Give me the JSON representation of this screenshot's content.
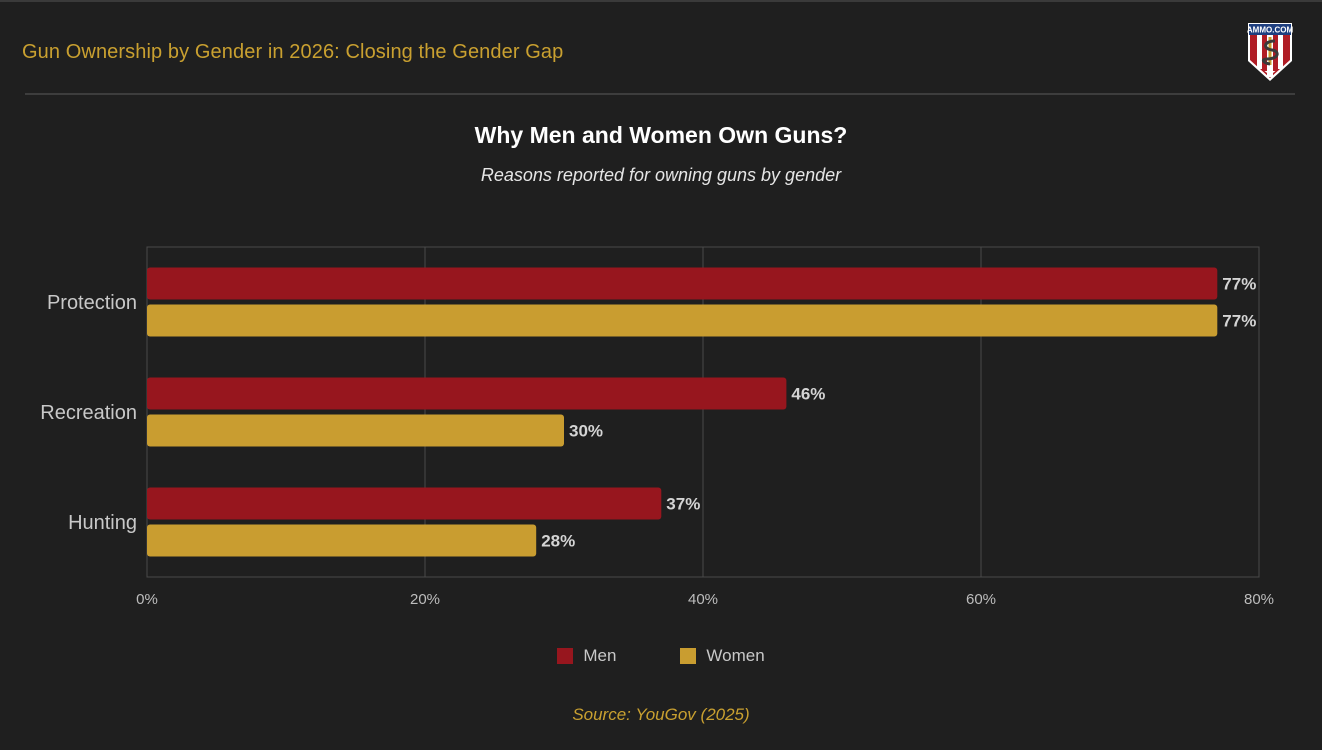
{
  "header": {
    "title": "Gun Ownership by Gender in 2026: Closing the Gender Gap",
    "logo_text": "AMMO.COM"
  },
  "colors": {
    "men": "#97161e",
    "women": "#c99d30",
    "accent": "#c9a030",
    "background": "#1f1f1f",
    "grid": "#4a4a4a"
  },
  "chart_data": {
    "type": "bar",
    "orientation": "horizontal",
    "title": "Why Men and Women Own Guns?",
    "subtitle": "Reasons reported for owning guns by gender",
    "categories": [
      "Protection",
      "Recreation",
      "Hunting"
    ],
    "series": [
      {
        "name": "Men",
        "values": [
          77,
          46,
          37
        ],
        "labels": [
          "77%",
          "46%",
          "37%"
        ]
      },
      {
        "name": "Women",
        "values": [
          77,
          30,
          28
        ],
        "labels": [
          "77%",
          "30%",
          "28%"
        ]
      }
    ],
    "xlabel": "",
    "ylabel": "",
    "xlim": [
      0,
      80
    ],
    "xticks": [
      0,
      20,
      40,
      60,
      80
    ],
    "xtick_labels": [
      "0%",
      "20%",
      "40%",
      "60%",
      "80%"
    ],
    "grid": true,
    "legend_position": "bottom-center",
    "source": "Source: YouGov (2025)"
  }
}
